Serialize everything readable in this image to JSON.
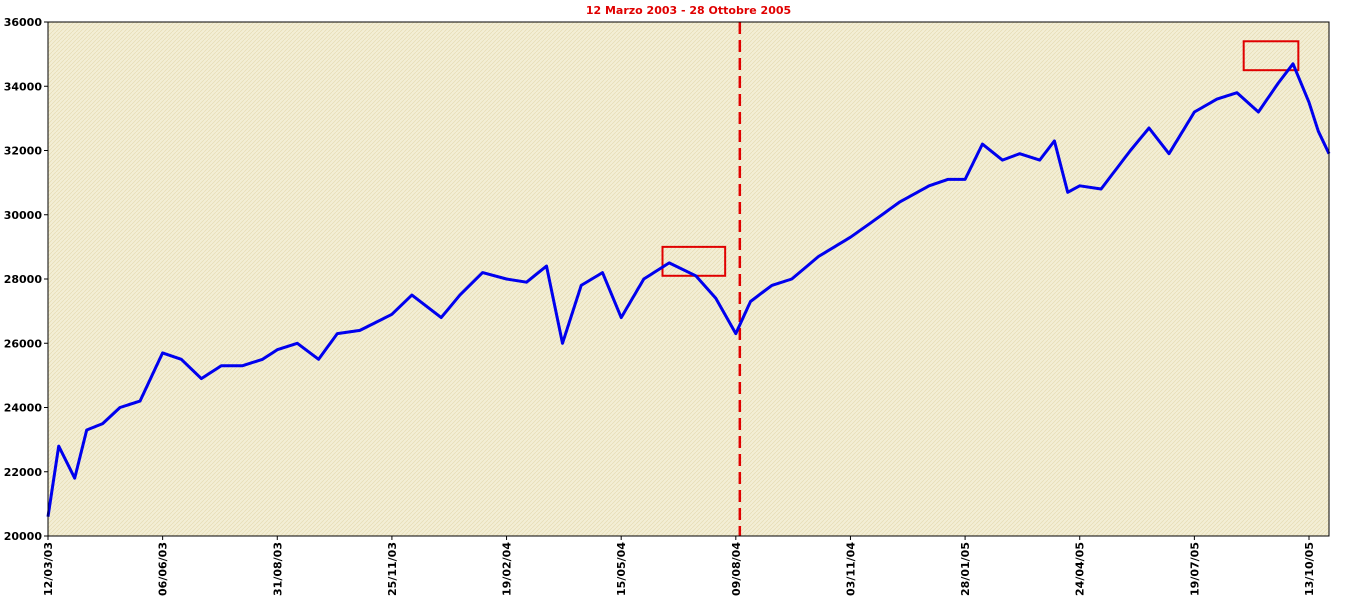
{
  "chart_data": {
    "type": "line",
    "title": "12 Marzo 2003 - 28 Ottobre 2005",
    "title_color": "#e00000",
    "xlabel": "",
    "ylabel": "",
    "ylim": [
      20000,
      36000
    ],
    "y_ticks": [
      20000,
      22000,
      24000,
      26000,
      28000,
      30000,
      32000,
      34000,
      36000
    ],
    "x_ticks": [
      "12/03/03",
      "06/06/03",
      "31/08/03",
      "25/11/03",
      "19/02/04",
      "15/05/04",
      "09/08/04",
      "03/11/04",
      "28/01/05",
      "24/04/05",
      "19/07/05",
      "13/10/05"
    ],
    "grid": false,
    "plot_background": "#f3eed5",
    "series": [
      {
        "color": "#0000ee",
        "x": [
          "12/03/03",
          "20/03/03",
          "01/04/03",
          "10/04/03",
          "22/04/03",
          "05/05/03",
          "20/05/03",
          "06/06/03",
          "20/06/03",
          "05/07/03",
          "20/07/03",
          "05/08/03",
          "20/08/03",
          "31/08/03",
          "15/09/03",
          "01/10/03",
          "15/10/03",
          "01/11/03",
          "25/11/03",
          "10/12/03",
          "01/01/04",
          "15/01/04",
          "01/02/04",
          "19/02/04",
          "05/03/04",
          "20/03/04",
          "01/04/04",
          "15/04/04",
          "01/05/04",
          "15/05/04",
          "01/06/04",
          "20/06/04",
          "10/07/04",
          "25/07/04",
          "09/08/04",
          "20/08/04",
          "05/09/04",
          "20/09/04",
          "10/10/04",
          "03/11/04",
          "20/11/04",
          "10/12/04",
          "01/01/05",
          "15/01/05",
          "28/01/05",
          "10/02/05",
          "25/02/05",
          "10/03/05",
          "25/03/05",
          "05/04/05",
          "15/04/05",
          "24/04/05",
          "10/05/05",
          "01/06/05",
          "15/06/05",
          "30/06/05",
          "19/07/05",
          "05/08/05",
          "20/08/05",
          "05/09/05",
          "20/09/05",
          "01/10/05",
          "13/10/05",
          "20/10/05",
          "28/10/05"
        ],
        "values": [
          20600,
          22800,
          21800,
          23300,
          23500,
          24000,
          24200,
          25700,
          25500,
          24900,
          25300,
          25300,
          25500,
          25800,
          26000,
          25500,
          26300,
          26400,
          26900,
          27500,
          26800,
          27500,
          28200,
          28000,
          27900,
          28400,
          26000,
          27800,
          28200,
          26800,
          28000,
          28500,
          28100,
          27400,
          26300,
          27300,
          27800,
          28000,
          28700,
          29300,
          29800,
          30400,
          30900,
          31100,
          31100,
          32200,
          31700,
          31900,
          31700,
          32300,
          30700,
          30900,
          30800,
          32000,
          32700,
          31900,
          33200,
          33600,
          33800,
          33200,
          34100,
          34700,
          33500,
          32600,
          31900
        ]
      }
    ],
    "annotations": [
      {
        "type": "vertical-dashed-line",
        "x": "12/08/04",
        "color": "#e00000"
      },
      {
        "type": "box",
        "x_from": "15/06/04",
        "x_to": "01/08/04",
        "y_from": 28100,
        "y_to": 29000,
        "color": "#e00000"
      },
      {
        "type": "box",
        "x_from": "25/08/05",
        "x_to": "05/10/05",
        "y_from": 34500,
        "y_to": 35400,
        "color": "#e00000"
      }
    ]
  }
}
